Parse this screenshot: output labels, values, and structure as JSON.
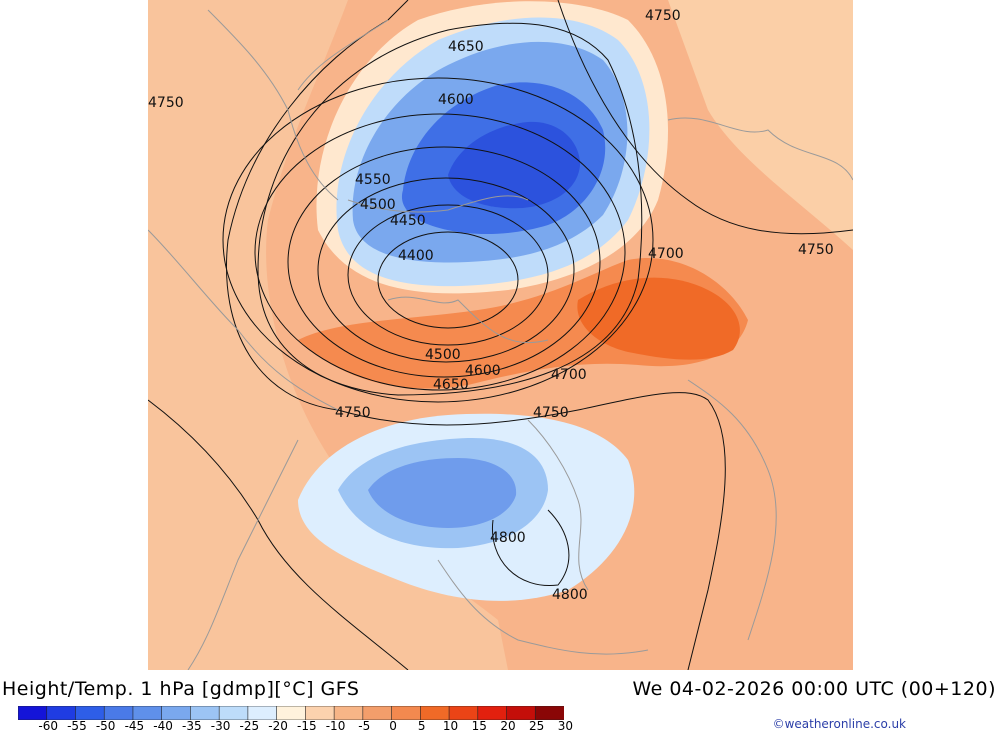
{
  "title": "Height/Temp. 1 hPa [gdmp][°C] GFS",
  "valid_time": "We 04-02-2026 00:00 UTC (00+120)",
  "credit": "©weatheronline.co.uk",
  "colorbar": {
    "tick_labels": [
      "-60",
      "-55",
      "-50",
      "-45",
      "-40",
      "-35",
      "-30",
      "-25",
      "-20",
      "-15",
      "-10",
      "-5",
      "0",
      "5",
      "10",
      "15",
      "20",
      "25",
      "30"
    ],
    "colors": [
      "#1414d8",
      "#1f3ce2",
      "#2e5ee8",
      "#4a7ae8",
      "#5f90ea",
      "#7aa8ee",
      "#9cc4f4",
      "#bddcfa",
      "#ddeefe",
      "#fff2dc",
      "#fcd2ae",
      "#f7b587",
      "#f39e6b",
      "#f3894f",
      "#f06a27",
      "#eb4416",
      "#e2200e",
      "#c40e09",
      "#8a0606"
    ]
  },
  "contour_labels": [
    {
      "text": "4750",
      "pos": "top-right"
    },
    {
      "text": "4650",
      "pos": "top"
    },
    {
      "text": "4750",
      "pos": "left"
    },
    {
      "text": "4600",
      "pos": "upper-center"
    },
    {
      "text": "4550",
      "pos": "center-left"
    },
    {
      "text": "4500",
      "pos": "center-left"
    },
    {
      "text": "4450",
      "pos": "center-left"
    },
    {
      "text": "4400",
      "pos": "center"
    },
    {
      "text": "4700",
      "pos": "right"
    },
    {
      "text": "4750",
      "pos": "far-right"
    },
    {
      "text": "4500",
      "pos": "lower-center"
    },
    {
      "text": "4600",
      "pos": "lower-center"
    },
    {
      "text": "4700",
      "pos": "lower-right"
    },
    {
      "text": "4650",
      "pos": "lower-center"
    },
    {
      "text": "4750",
      "pos": "lower-left"
    },
    {
      "text": "4750",
      "pos": "lower-center"
    },
    {
      "text": "4800",
      "pos": "bottom-center"
    },
    {
      "text": "4800",
      "pos": "bottom-center"
    }
  ]
}
